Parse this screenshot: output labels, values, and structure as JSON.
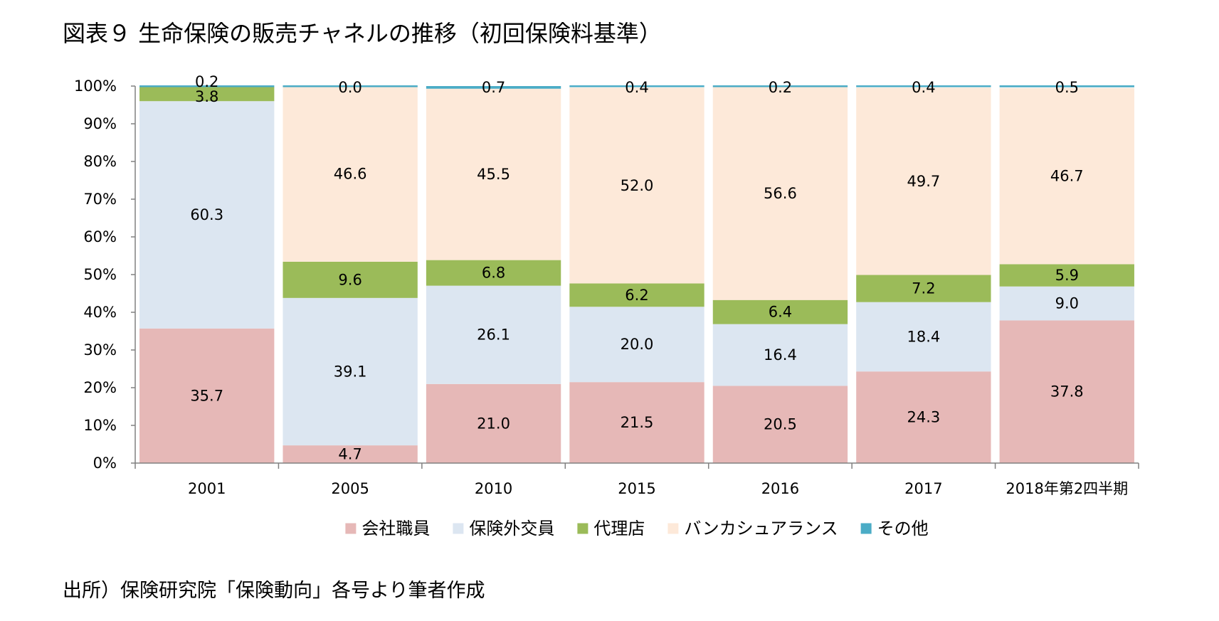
{
  "title": "図表９ 生命保険の販売チャネルの推移（初回保険料基準）",
  "source": "出所）保険研究院「保険動向」各号より筆者作成",
  "chart_data": {
    "type": "bar",
    "stacked": true,
    "categories": [
      "2001",
      "2005",
      "2010",
      "2015",
      "2016",
      "2017",
      "2018年第2四半期"
    ],
    "series": [
      {
        "name": "会社職員",
        "color": "#e6b8b7",
        "values": [
          35.7,
          4.7,
          21.0,
          21.5,
          20.5,
          24.3,
          37.8
        ],
        "labels": [
          "35.7",
          "4.7",
          "21.0",
          "21.5",
          "20.5",
          "24.3",
          "37.8"
        ]
      },
      {
        "name": "保険外交員",
        "color": "#dce6f1",
        "values": [
          60.3,
          39.1,
          26.1,
          20.0,
          16.4,
          18.4,
          9.0
        ],
        "labels": [
          "60.3",
          "39.1",
          "26.1",
          "20.0",
          "16.4",
          "18.4",
          "9.0"
        ]
      },
      {
        "name": "代理店",
        "color": "#9bbb59",
        "values": [
          3.8,
          9.6,
          6.8,
          6.2,
          6.4,
          7.2,
          5.9
        ],
        "labels": [
          "3.8",
          "9.6",
          "6.8",
          "6.2",
          "6.4",
          "7.2",
          "5.9"
        ]
      },
      {
        "name": "バンカシュアランス",
        "color": "#fde9d9",
        "values": [
          0.0,
          46.6,
          45.5,
          52.0,
          56.6,
          49.7,
          46.7
        ],
        "labels": [
          "",
          "46.6",
          "45.5",
          "52.0",
          "56.6",
          "49.7",
          "46.7"
        ]
      },
      {
        "name": "その他",
        "color": "#4bacc6",
        "values": [
          0.2,
          0.0,
          0.7,
          0.4,
          0.2,
          0.4,
          0.5
        ],
        "labels": [
          "0.2",
          "0.0",
          "0.7",
          "0.4",
          "0.2",
          "0.4",
          "0.5"
        ]
      }
    ],
    "y_ticks": [
      "0%",
      "10%",
      "20%",
      "30%",
      "40%",
      "50%",
      "60%",
      "70%",
      "80%",
      "90%",
      "100%"
    ],
    "ylim": [
      0,
      100
    ],
    "grid": false,
    "legend_position": "bottom"
  }
}
